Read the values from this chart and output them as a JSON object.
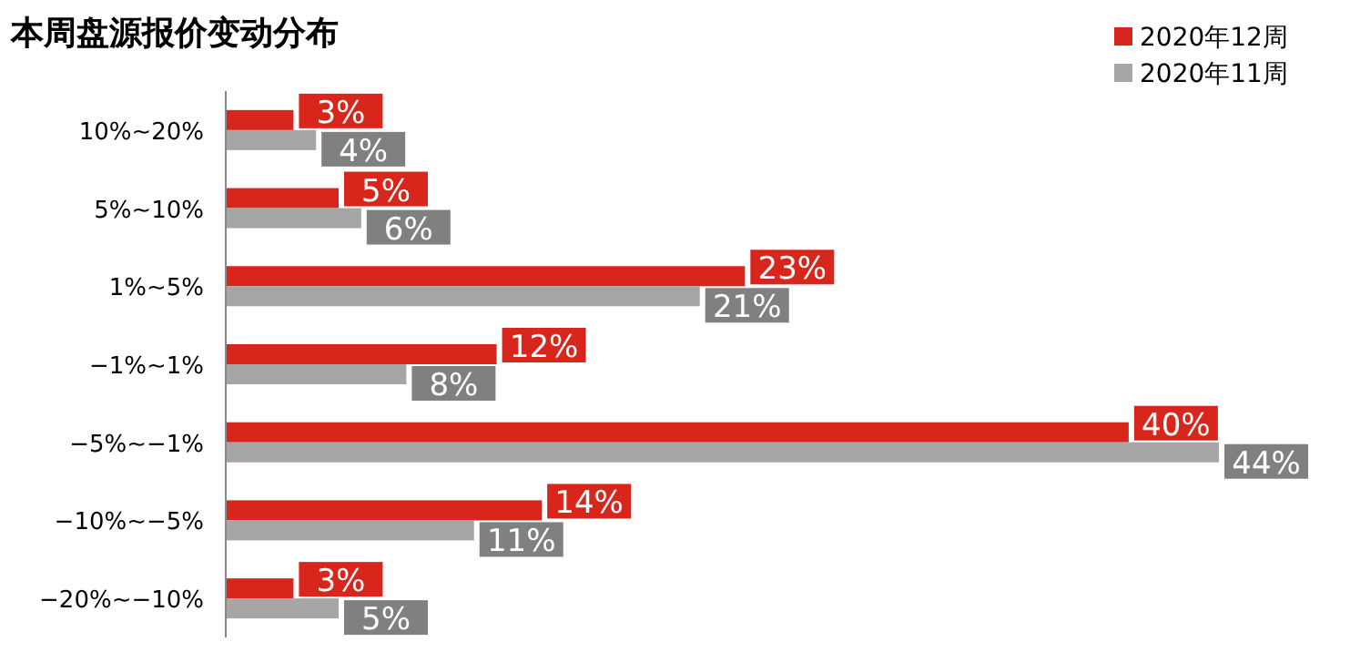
{
  "chart_data": {
    "type": "bar",
    "orientation": "horizontal",
    "title": "本周盘源报价变动分布",
    "categories": [
      "10%~20%",
      "5%~10%",
      "1%~5%",
      "−1%~1%",
      "−5%~−1%",
      "−10%~−5%",
      "−20%~−10%"
    ],
    "series": [
      {
        "name": "2020年12周",
        "color": "#d9261c",
        "values": [
          3,
          5,
          23,
          12,
          40,
          14,
          3
        ],
        "value_labels": [
          "3%",
          "5%",
          "23%",
          "12%",
          "40%",
          "14%",
          "3%"
        ]
      },
      {
        "name": "2020年11周",
        "color": "#a6a6a6",
        "values": [
          4,
          6,
          21,
          8,
          44,
          11,
          5
        ],
        "value_labels": [
          "4%",
          "6%",
          "21%",
          "8%",
          "44%",
          "11%",
          "5%"
        ]
      }
    ],
    "legend": "top right"
  }
}
